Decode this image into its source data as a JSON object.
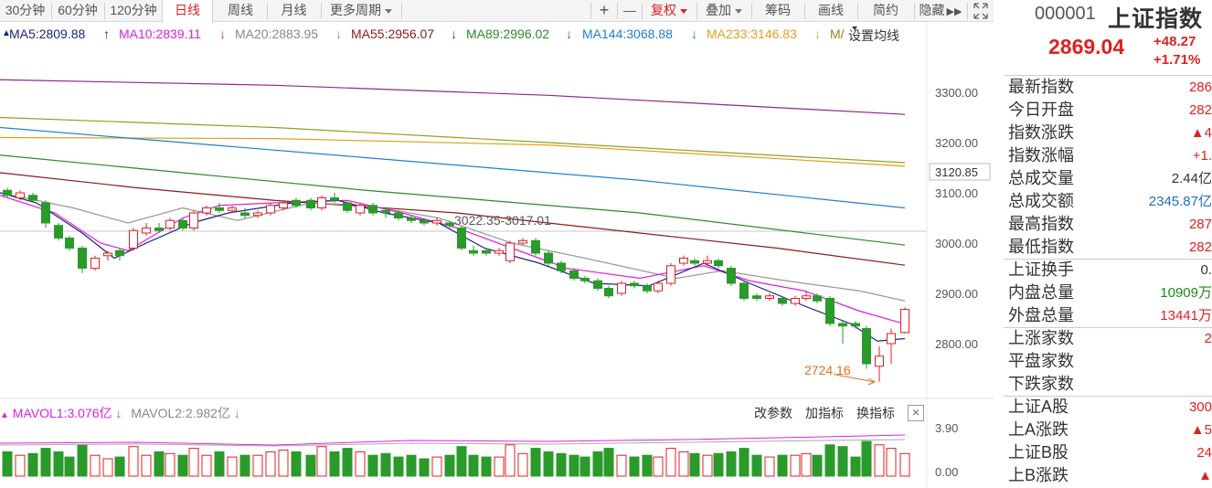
{
  "toolbar": {
    "periods": [
      "30分钟",
      "60分钟",
      "120分钟",
      "日线",
      "周线",
      "月线",
      "更多周期"
    ],
    "active": "日线",
    "zoom_in": "+",
    "zoom_out": "—",
    "fuquan": "复权",
    "diejia": "叠加",
    "chouma": "筹码",
    "huaxian": "画线",
    "jianyue": "简约",
    "yincang": "隐藏"
  },
  "ma_legend": {
    "ma5": "MA5:2809.88",
    "ma10": "MA10:2839.11",
    "ma20": "MA20:2883.95",
    "ma55": "MA55:2956.07",
    "ma89": "MA89:2996.02",
    "ma144": "MA144:3068.88",
    "ma233": "MA233:3146.83",
    "ma_more": "M/",
    "set_ma": "设置均线"
  },
  "price_axis": {
    "ticks": [
      "3300.00",
      "3200.00",
      "3100.00",
      "3000.00",
      "2900.00",
      "2800.00"
    ],
    "marker": "3120.85"
  },
  "annotations": {
    "high_range": "3022.35-3017.01",
    "low": "2724.16"
  },
  "volume": {
    "mavol1": "MAVOL1:3.076亿",
    "mavol2": "MAVOL2:2.982亿",
    "btn_params": "改参数",
    "btn_add": "加指标",
    "btn_switch": "换指标",
    "close": "×",
    "axis_top": "3.90",
    "axis_bottom": "0.00"
  },
  "panel": {
    "code": "000001",
    "name": "上证指数",
    "price": "2869.04",
    "change": "+48.27",
    "pct": "+1.71%",
    "rows_a": [
      {
        "label": "最新指数",
        "value": "286",
        "color": "red"
      },
      {
        "label": "今日开盘",
        "value": "282",
        "color": "red"
      },
      {
        "label": "指数涨跌",
        "value": "▲4",
        "color": "red"
      },
      {
        "label": "指数涨幅",
        "value": "+1.",
        "color": "red"
      },
      {
        "label": "总成交量",
        "value": "2.44亿",
        "color": "dark"
      },
      {
        "label": "总成交额",
        "value": "2345.87亿",
        "color": "blue"
      },
      {
        "label": "最高指数",
        "value": "287",
        "color": "red"
      },
      {
        "label": "最低指数",
        "value": "282",
        "color": "red"
      }
    ],
    "rows_b": [
      {
        "label": "上证换手",
        "value": "0.",
        "color": "dark"
      },
      {
        "label": "内盘总量",
        "value": "10909万",
        "color": "green"
      },
      {
        "label": "外盘总量",
        "value": "13441万",
        "color": "red"
      }
    ],
    "rows_c": [
      {
        "label": "上涨家数",
        "value": "2",
        "color": "red"
      },
      {
        "label": "平盘家数",
        "value": "",
        "color": "dark"
      },
      {
        "label": "下跌家数",
        "value": "",
        "color": "green"
      }
    ],
    "rows_d": [
      {
        "label": "上证A股",
        "value": "300",
        "color": "red"
      },
      {
        "label": "上A涨跌",
        "value": "▲5",
        "color": "red"
      },
      {
        "label": "上证B股",
        "value": "24",
        "color": "red"
      },
      {
        "label": "上B涨跌",
        "value": "▲",
        "color": "red"
      }
    ]
  },
  "colors": {
    "up": "#e02020",
    "down": "#2a9a2a",
    "ma5": "#1a237e",
    "ma10": "#e020e0",
    "ma20": "#999999",
    "ma55": "#8b1a1a",
    "ma89": "#2a8a2a",
    "ma144": "#1e7fd0",
    "ma233": "#e0a020"
  }
}
